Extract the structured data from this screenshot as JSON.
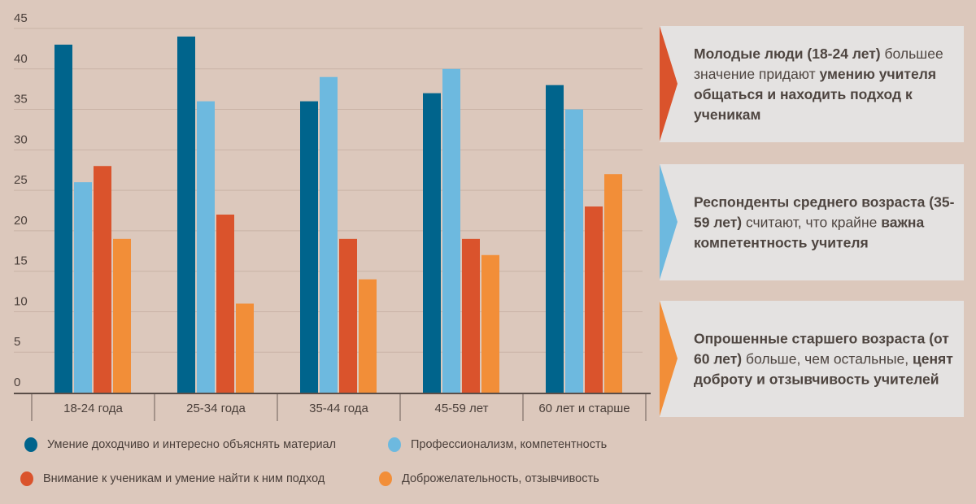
{
  "chart_data": {
    "type": "bar",
    "categories": [
      "18-24 года",
      "25-34 года",
      "35-44 года",
      "45-59 лет",
      "60 лет и старше"
    ],
    "ylim": [
      0,
      45
    ],
    "yticks": [
      0,
      5,
      10,
      15,
      20,
      25,
      30,
      35,
      40,
      45
    ],
    "grid": true,
    "legend_position": "bottom",
    "series": [
      {
        "name": "Умение доходчиво и интересно объяснять материал",
        "color": "#00648c",
        "values": [
          43,
          44,
          36,
          37,
          38
        ]
      },
      {
        "name": "Профессионализм, компетентность",
        "color": "#6db9df",
        "values": [
          26,
          36,
          39,
          40,
          35
        ]
      },
      {
        "name": "Внимание к ученикам и умение найти к ним подход",
        "color": "#da532c",
        "values": [
          28,
          22,
          19,
          19,
          23
        ]
      },
      {
        "name": "Доброжелательность, отзывчивость",
        "color": "#f28e38",
        "values": [
          19,
          11,
          14,
          17,
          27
        ]
      }
    ]
  },
  "panels": [
    {
      "color": "#da532c",
      "parts": [
        {
          "t": "Молодые люди (18-24 лет)",
          "b": true
        },
        {
          "t": " большее значение придают ",
          "b": false
        },
        {
          "t": "умению учителя общаться и находить подход к ученикам",
          "b": true
        }
      ]
    },
    {
      "color": "#6db9df",
      "parts": [
        {
          "t": "Респонденты среднего возраста (35-59 лет)",
          "b": true
        },
        {
          "t": " считают, что крайне ",
          "b": false
        },
        {
          "t": "важна компетентность учителя",
          "b": true
        }
      ]
    },
    {
      "color": "#f28e38",
      "parts": [
        {
          "t": "Опрошенные старшего возраста (от 60 лет)",
          "b": true
        },
        {
          "t": " больше, чем остальные, ",
          "b": false
        },
        {
          "t": "ценят доброту и отзывчивость учителей",
          "b": true
        }
      ]
    }
  ]
}
